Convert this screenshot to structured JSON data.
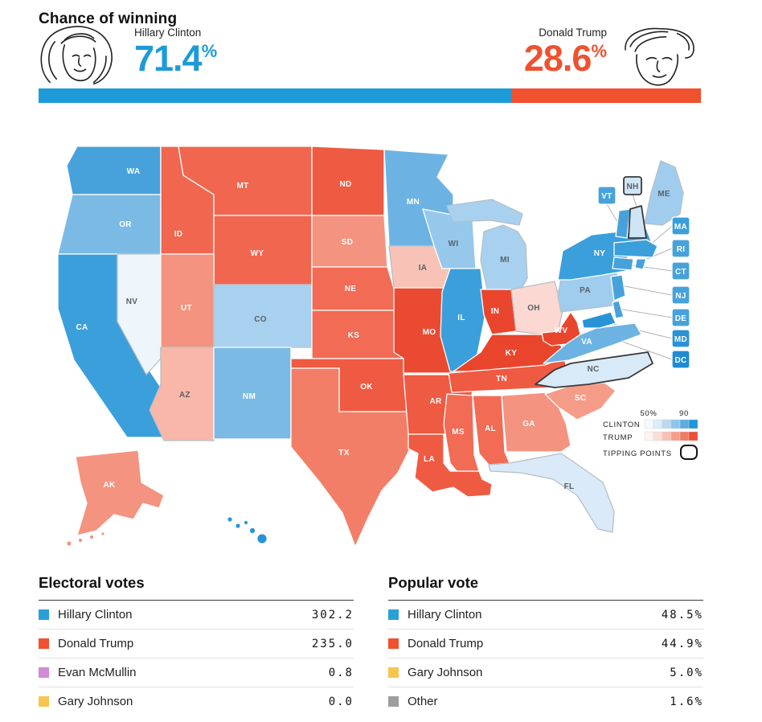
{
  "header": {
    "title": "Chance of winning",
    "clinton": {
      "name": "Hillary Clinton",
      "pct": "71.4",
      "pct_symbol": "%"
    },
    "trump": {
      "name": "Donald Trump",
      "pct": "28.6",
      "pct_symbol": "%"
    },
    "bar": {
      "clinton_pct": 71.4,
      "trump_pct": 28.6
    }
  },
  "colors": {
    "clinton": "#1d9bd8",
    "trump": "#f0512f"
  },
  "map": {
    "legend": {
      "min_label": "50%",
      "max_label": "90",
      "clinton_label": "CLINTON",
      "trump_label": "TRUMP",
      "tipping_label": "TIPPING POINTS",
      "clinton_scale": [
        "#f4f9fd",
        "#dcecf8",
        "#b7daf1",
        "#8ec5ea",
        "#5cace0",
        "#2196d9"
      ],
      "trump_scale": [
        "#fdf3f0",
        "#fbded7",
        "#f8c0b3",
        "#f59e8c",
        "#f17a63",
        "#ee4f37"
      ]
    },
    "states": [
      {
        "id": "WA",
        "color": "#47a2dc"
      },
      {
        "id": "OR",
        "color": "#7cbae6"
      },
      {
        "id": "CA",
        "color": "#3b9fdb"
      },
      {
        "id": "NV",
        "color": "#eef5fb"
      },
      {
        "id": "ID",
        "color": "#f1664f"
      },
      {
        "id": "MT",
        "color": "#f1664f"
      },
      {
        "id": "WY",
        "color": "#f1664f"
      },
      {
        "id": "UT",
        "color": "#f4937f"
      },
      {
        "id": "CO",
        "color": "#a8d1ef"
      },
      {
        "id": "AZ",
        "color": "#f8b7a9"
      },
      {
        "id": "NM",
        "color": "#7cbae6"
      },
      {
        "id": "ND",
        "color": "#ef5a42"
      },
      {
        "id": "SD",
        "color": "#f4937f"
      },
      {
        "id": "NE",
        "color": "#f16b55"
      },
      {
        "id": "KS",
        "color": "#f16b55"
      },
      {
        "id": "OK",
        "color": "#ef5a42"
      },
      {
        "id": "TX",
        "color": "#f37e68"
      },
      {
        "id": "MN",
        "color": "#6cb3e3"
      },
      {
        "id": "IA",
        "color": "#f8c3b6"
      },
      {
        "id": "MO",
        "color": "#ea4a31"
      },
      {
        "id": "AR",
        "color": "#ef5a42"
      },
      {
        "id": "LA",
        "color": "#ef5a42"
      },
      {
        "id": "WI",
        "color": "#96c8ec"
      },
      {
        "id": "IL",
        "color": "#3b9fdb"
      },
      {
        "id": "MI",
        "color": "#a8d1ef"
      },
      {
        "id": "IN",
        "color": "#e9452d"
      },
      {
        "id": "OH",
        "color": "#fbd8d1"
      },
      {
        "id": "KY",
        "color": "#e9452d"
      },
      {
        "id": "TN",
        "color": "#ef5a42"
      },
      {
        "id": "MS",
        "color": "#f16b55"
      },
      {
        "id": "AL",
        "color": "#f16b55"
      },
      {
        "id": "GA",
        "color": "#f4937f"
      },
      {
        "id": "FL",
        "color": "#dbeaf8"
      },
      {
        "id": "SC",
        "color": "#f59c89"
      },
      {
        "id": "NC",
        "color": "#d8e9f7",
        "tipping": true
      },
      {
        "id": "VA",
        "color": "#6cb3e3"
      },
      {
        "id": "WV",
        "color": "#e9452d"
      },
      {
        "id": "PA",
        "color": "#a0cdee"
      },
      {
        "id": "NY",
        "color": "#3b9fdb"
      },
      {
        "id": "ME",
        "color": "#a0cdee"
      },
      {
        "id": "VT",
        "color": "#47a2dc"
      },
      {
        "id": "NH",
        "color": "#cfe5f6",
        "tipping": true
      },
      {
        "id": "MA",
        "color": "#3b9fdb"
      },
      {
        "id": "RI",
        "color": "#47a2dc"
      },
      {
        "id": "CT",
        "color": "#47a2dc"
      },
      {
        "id": "NJ",
        "color": "#47a2dc"
      },
      {
        "id": "DE",
        "color": "#47a2dc"
      },
      {
        "id": "MD",
        "color": "#2a93d7"
      },
      {
        "id": "DC",
        "color": "#1e8cd3"
      },
      {
        "id": "AK",
        "color": "#f4937f"
      },
      {
        "id": "HI",
        "color": "#2a93d7"
      }
    ]
  },
  "tables": [
    {
      "title": "Electoral votes",
      "rows": [
        {
          "name": "Hillary Clinton",
          "value": "302.2",
          "swatch": "#2a9fd8"
        },
        {
          "name": "Donald Trump",
          "value": "235.0",
          "swatch": "#f0512f"
        },
        {
          "name": "Evan McMullin",
          "value": "0.8",
          "swatch": "#d18ad6"
        },
        {
          "name": "Gary Johnson",
          "value": "0.0",
          "swatch": "#f5c54f"
        }
      ]
    },
    {
      "title": "Popular vote",
      "rows": [
        {
          "name": "Hillary Clinton",
          "value": "48.5%",
          "swatch": "#2a9fd8"
        },
        {
          "name": "Donald Trump",
          "value": "44.9%",
          "swatch": "#f0512f"
        },
        {
          "name": "Gary Johnson",
          "value": "5.0%",
          "swatch": "#f5c54f"
        },
        {
          "name": "Other",
          "value": "1.6%",
          "swatch": "#9e9e9e"
        }
      ]
    }
  ]
}
